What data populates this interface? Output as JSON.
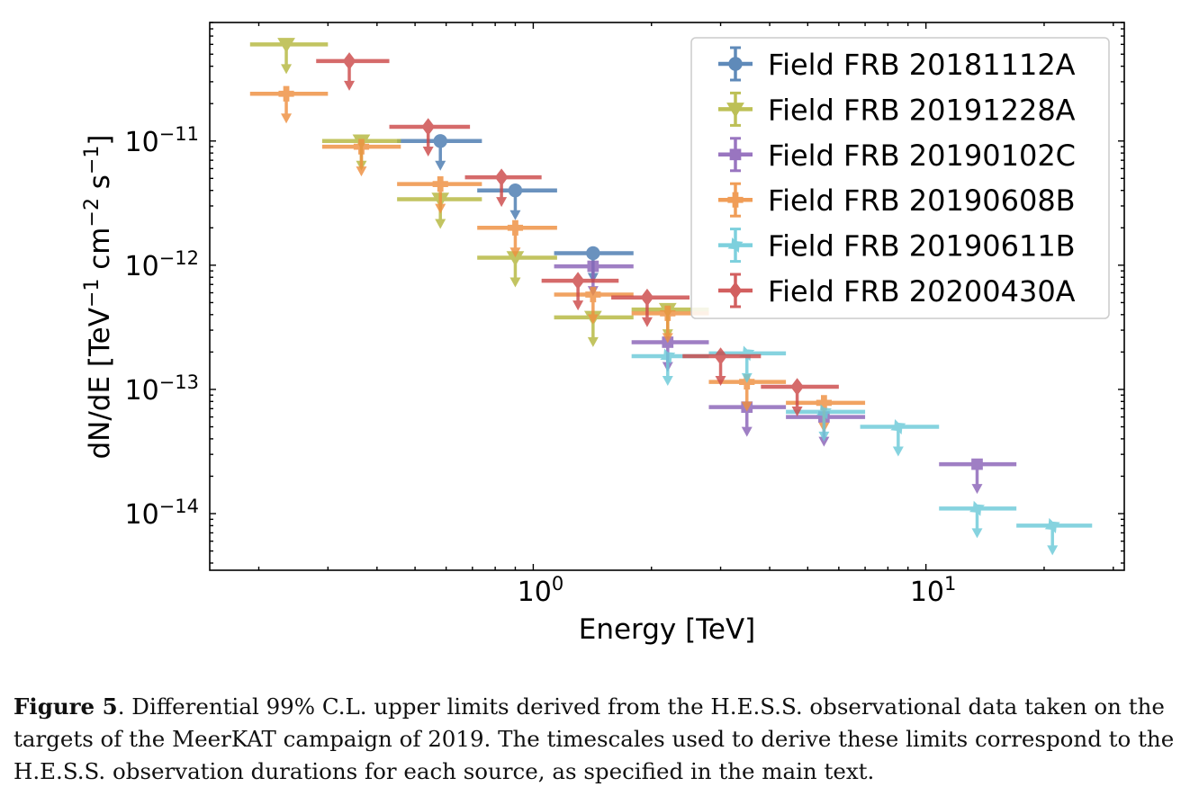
{
  "chart_data": {
    "type": "scatter",
    "subtype": "upper-limit spectrum (log-log)",
    "xlabel": "Energy [TeV]",
    "ylabel": "dN/dE [TeV$^{-1}$ cm$^{-2}$ s$^{-1}$]",
    "xscale": "log",
    "yscale": "log",
    "xlim": [
      0.15,
      32
    ],
    "ylim": [
      3.5e-15,
      9e-11
    ],
    "x_ticks": [
      {
        "value": 1,
        "mant": "10",
        "exp": "0"
      },
      {
        "value": 10,
        "mant": "10",
        "exp": "1"
      }
    ],
    "y_ticks": [
      {
        "value": 1e-14,
        "mant": "10",
        "exp": "−14"
      },
      {
        "value": 1e-13,
        "mant": "10",
        "exp": "−13"
      },
      {
        "value": 1e-12,
        "mant": "10",
        "exp": "−12"
      },
      {
        "value": 1e-11,
        "mant": "10",
        "exp": "−11"
      }
    ],
    "legend_position": "top-right",
    "series": [
      {
        "name": "Field FRB 20181112A",
        "color": "#4a7bb0",
        "marker": "circle",
        "points": [
          {
            "x": 0.58,
            "xlo": 0.45,
            "xhi": 0.74,
            "y": 1e-11
          },
          {
            "x": 0.9,
            "xlo": 0.72,
            "xhi": 1.15,
            "y": 4e-12
          },
          {
            "x": 1.42,
            "xlo": 1.13,
            "xhi": 1.8,
            "y": 1.25e-12
          }
        ]
      },
      {
        "name": "Field FRB 20191228A",
        "color": "#b5b83f",
        "marker": "triangle-down",
        "points": [
          {
            "x": 0.235,
            "xlo": 0.19,
            "xhi": 0.3,
            "y": 6e-11
          },
          {
            "x": 0.365,
            "xlo": 0.29,
            "xhi": 0.46,
            "y": 1e-11
          },
          {
            "x": 0.58,
            "xlo": 0.45,
            "xhi": 0.74,
            "y": 3.4e-12
          },
          {
            "x": 0.9,
            "xlo": 0.72,
            "xhi": 1.15,
            "y": 1.15e-12
          },
          {
            "x": 1.42,
            "xlo": 1.13,
            "xhi": 1.8,
            "y": 3.8e-13
          },
          {
            "x": 2.2,
            "xlo": 1.78,
            "xhi": 2.8,
            "y": 4.4e-13
          }
        ]
      },
      {
        "name": "Field FRB 20190102C",
        "color": "#8b63b8",
        "marker": "square",
        "points": [
          {
            "x": 1.42,
            "xlo": 1.13,
            "xhi": 1.8,
            "y": 9.8e-13
          },
          {
            "x": 2.2,
            "xlo": 1.78,
            "xhi": 2.8,
            "y": 2.4e-13
          },
          {
            "x": 3.5,
            "xlo": 2.8,
            "xhi": 4.4,
            "y": 7.2e-14
          },
          {
            "x": 5.5,
            "xlo": 4.4,
            "xhi": 7.0,
            "y": 6e-14
          },
          {
            "x": 13.5,
            "xlo": 10.8,
            "xhi": 17.0,
            "y": 2.5e-14
          }
        ]
      },
      {
        "name": "Field FRB 20190608B",
        "color": "#ee9040",
        "marker": "plus",
        "points": [
          {
            "x": 0.235,
            "xlo": 0.19,
            "xhi": 0.3,
            "y": 2.4e-11
          },
          {
            "x": 0.365,
            "xlo": 0.29,
            "xhi": 0.46,
            "y": 9e-12
          },
          {
            "x": 0.58,
            "xlo": 0.45,
            "xhi": 0.74,
            "y": 4.5e-12
          },
          {
            "x": 0.9,
            "xlo": 0.72,
            "xhi": 1.15,
            "y": 2e-12
          },
          {
            "x": 1.42,
            "xlo": 1.13,
            "xhi": 1.8,
            "y": 5.8e-13
          },
          {
            "x": 2.2,
            "xlo": 1.78,
            "xhi": 2.8,
            "y": 4.1e-13
          },
          {
            "x": 3.5,
            "xlo": 2.8,
            "xhi": 4.4,
            "y": 1.15e-13
          },
          {
            "x": 5.5,
            "xlo": 4.4,
            "xhi": 7.0,
            "y": 7.8e-14
          }
        ]
      },
      {
        "name": "Field FRB 20190611B",
        "color": "#6ccad9",
        "marker": "x-filled",
        "points": [
          {
            "x": 2.2,
            "xlo": 1.78,
            "xhi": 2.8,
            "y": 1.85e-13
          },
          {
            "x": 3.5,
            "xlo": 2.8,
            "xhi": 4.4,
            "y": 1.95e-13
          },
          {
            "x": 5.5,
            "xlo": 4.4,
            "xhi": 7.0,
            "y": 6.6e-14
          },
          {
            "x": 8.5,
            "xlo": 6.8,
            "xhi": 10.8,
            "y": 5e-14
          },
          {
            "x": 13.5,
            "xlo": 10.8,
            "xhi": 17.0,
            "y": 1.1e-14
          },
          {
            "x": 21.0,
            "xlo": 17.0,
            "xhi": 26.5,
            "y": 8e-15
          }
        ]
      },
      {
        "name": "Field FRB 20200430A",
        "color": "#cc4a4a",
        "marker": "diamond",
        "points": [
          {
            "x": 0.34,
            "xlo": 0.28,
            "xhi": 0.43,
            "y": 4.4e-11
          },
          {
            "x": 0.54,
            "xlo": 0.43,
            "xhi": 0.69,
            "y": 1.3e-11
          },
          {
            "x": 0.83,
            "xlo": 0.67,
            "xhi": 1.05,
            "y": 5.1e-12
          },
          {
            "x": 1.3,
            "xlo": 1.05,
            "xhi": 1.65,
            "y": 7.5e-13
          },
          {
            "x": 1.95,
            "xlo": 1.58,
            "xhi": 2.5,
            "y": 5.5e-13
          },
          {
            "x": 3.0,
            "xlo": 2.4,
            "xhi": 3.8,
            "y": 1.85e-13
          },
          {
            "x": 4.7,
            "xlo": 3.8,
            "xhi": 6.0,
            "y": 1.05e-13
          }
        ]
      }
    ]
  },
  "caption": {
    "label": "Figure 5",
    "text": ". Differential 99% C.L. upper limits derived from the H.E.S.S. observational data taken on the targets of the MeerKAT campaign of 2019. The timescales used to derive these limits correspond to the H.E.S.S. observation durations for each source, as specified in the main text."
  }
}
